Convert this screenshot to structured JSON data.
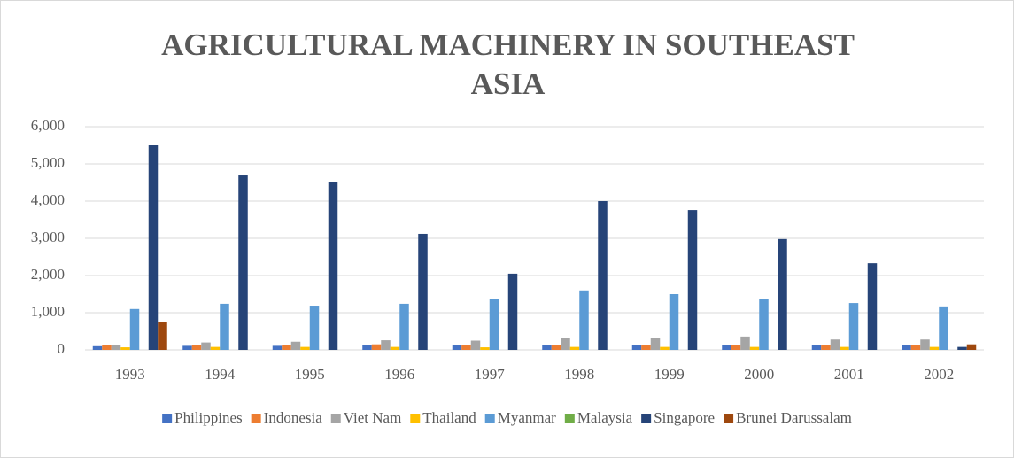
{
  "chart_data": {
    "type": "bar",
    "title": "AGRICULTURAL MACHINERY IN SOUTHEAST ASIA",
    "categories": [
      "1993",
      "1994",
      "1995",
      "1996",
      "1997",
      "1998",
      "1999",
      "2000",
      "2001",
      "2002"
    ],
    "series": [
      {
        "name": "Philippines",
        "color": "#4472c4",
        "values": [
          100,
          110,
          110,
          130,
          140,
          120,
          130,
          130,
          140,
          130
        ]
      },
      {
        "name": "Indonesia",
        "color": "#ed7d31",
        "values": [
          120,
          130,
          140,
          150,
          120,
          140,
          120,
          120,
          120,
          120
        ]
      },
      {
        "name": "Viet Nam",
        "color": "#a5a5a5",
        "values": [
          130,
          200,
          220,
          260,
          250,
          320,
          330,
          360,
          280,
          280
        ]
      },
      {
        "name": "Thailand",
        "color": "#ffc000",
        "values": [
          70,
          80,
          80,
          80,
          70,
          80,
          80,
          80,
          80,
          80
        ]
      },
      {
        "name": "Myanmar",
        "color": "#5b9bd5",
        "values": [
          1100,
          1240,
          1190,
          1240,
          1380,
          1600,
          1500,
          1360,
          1260,
          1170
        ]
      },
      {
        "name": "Malaysia",
        "color": "#70ad47",
        "values": [
          0,
          0,
          0,
          0,
          0,
          0,
          0,
          0,
          0,
          0
        ]
      },
      {
        "name": "Singapore",
        "color": "#264478",
        "values": [
          5500,
          4690,
          4520,
          3120,
          2050,
          4000,
          3760,
          2980,
          2330,
          80
        ]
      },
      {
        "name": "Brunei Darussalam",
        "color": "#9e480e",
        "values": [
          740,
          0,
          0,
          0,
          0,
          0,
          0,
          0,
          0,
          150
        ]
      }
    ],
    "ylim": [
      0,
      6000
    ],
    "yticks": [
      0,
      {
        "value": 1000,
        "label": "1,000"
      },
      {
        "value": 2000,
        "label": "2,000"
      },
      {
        "value": 3000,
        "label": "3,000"
      },
      {
        "value": 4000,
        "label": "4,000"
      },
      {
        "value": 5000,
        "label": "5,000"
      },
      {
        "value": 6000,
        "label": "6,000"
      }
    ],
    "grid": true,
    "legend": "bottom"
  }
}
